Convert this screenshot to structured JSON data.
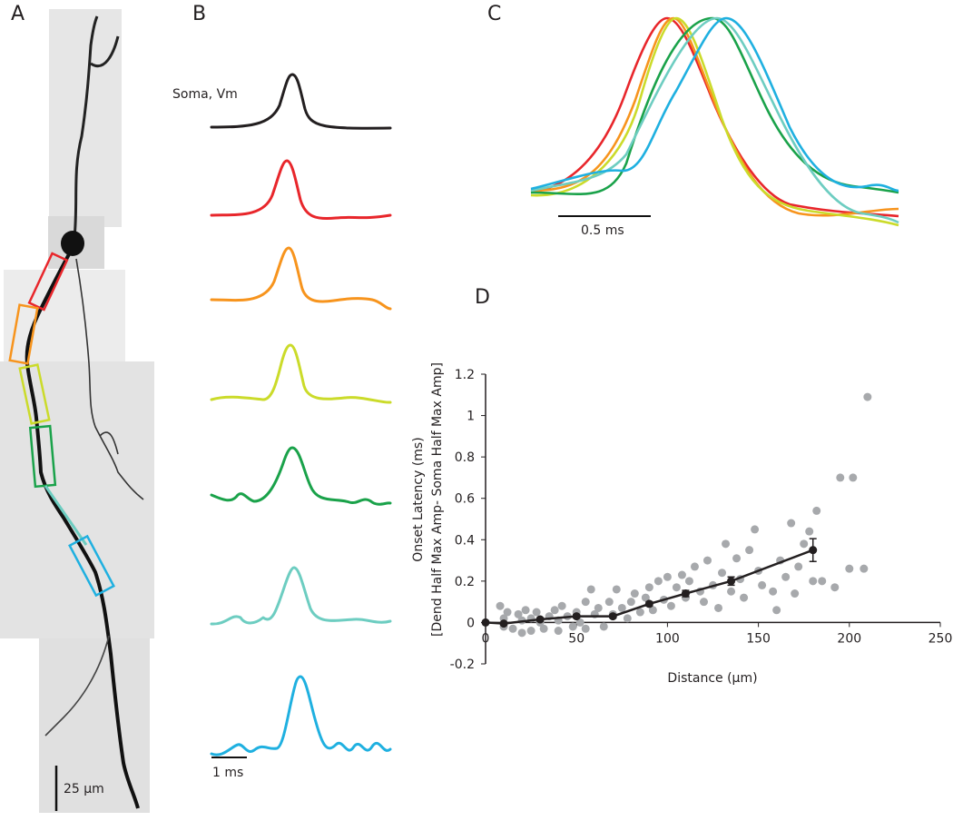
{
  "panels": {
    "A": {
      "label": "A",
      "scale_bar": "25 µm"
    },
    "B": {
      "label": "B",
      "trace_label": "Soma, Vm",
      "scale_bar": "1 ms"
    },
    "C": {
      "label": "C",
      "scale_bar": "0.5 ms"
    },
    "D": {
      "label": "D"
    }
  },
  "chart_data": {
    "type": "scatter",
    "xlabel": "Distance (µm)",
    "ylabel": [
      "Onset Latency (ms)",
      "[Dend Half Max Amp- Soma Half Max Amp]"
    ],
    "xlim": [
      0,
      250
    ],
    "xticks": [
      0,
      50,
      100,
      150,
      200,
      250
    ],
    "ylim": [
      -0.2,
      1.2
    ],
    "yticks": [
      -0.2,
      0,
      0.2,
      0.4,
      0.6,
      0.8,
      1,
      1.2
    ],
    "series": [
      {
        "type": "scatter",
        "color": "#a7a9ac",
        "x": [
          8,
          10,
          10,
          12,
          15,
          18,
          20,
          20,
          22,
          25,
          25,
          28,
          30,
          32,
          35,
          38,
          40,
          40,
          42,
          45,
          48,
          50,
          52,
          55,
          55,
          58,
          60,
          62,
          65,
          68,
          70,
          72,
          75,
          78,
          80,
          82,
          85,
          88,
          90,
          92,
          95,
          98,
          100,
          102,
          105,
          108,
          110,
          112,
          115,
          118,
          120,
          122,
          125,
          128,
          130,
          132,
          135,
          138,
          140,
          142,
          145,
          148,
          150,
          152,
          158,
          160,
          162,
          165,
          168,
          170,
          172,
          175,
          178,
          180,
          182,
          185,
          192,
          195,
          200,
          202,
          208,
          210
        ],
        "y": [
          0.08,
          0.02,
          -0.02,
          0.05,
          -0.03,
          0.04,
          0.01,
          -0.05,
          0.06,
          0.02,
          -0.04,
          0.05,
          0.0,
          -0.03,
          0.03,
          0.06,
          0.01,
          -0.04,
          0.08,
          0.03,
          -0.02,
          0.05,
          0.0,
          0.1,
          -0.03,
          0.16,
          0.04,
          0.07,
          -0.02,
          0.1,
          0.04,
          0.16,
          0.07,
          0.02,
          0.1,
          0.14,
          0.05,
          0.12,
          0.17,
          0.06,
          0.2,
          0.11,
          0.22,
          0.08,
          0.17,
          0.23,
          0.12,
          0.2,
          0.27,
          0.15,
          0.1,
          0.3,
          0.18,
          0.07,
          0.24,
          0.38,
          0.15,
          0.31,
          0.21,
          0.12,
          0.35,
          0.45,
          0.25,
          0.18,
          0.15,
          0.06,
          0.3,
          0.22,
          0.48,
          0.14,
          0.27,
          0.38,
          0.44,
          0.2,
          0.54,
          0.2,
          0.17,
          0.7,
          0.26,
          0.7,
          0.26,
          1.09
        ]
      },
      {
        "type": "line",
        "color": "#231f20",
        "x": [
          0,
          10,
          30,
          50,
          70,
          90,
          110,
          135,
          180
        ],
        "y": [
          0,
          -0.005,
          0.015,
          0.03,
          0.03,
          0.09,
          0.14,
          0.2,
          0.35
        ],
        "errors": [
          0,
          0.005,
          0.008,
          0.008,
          0.008,
          0.01,
          0.015,
          0.02,
          0.055
        ]
      }
    ]
  }
}
